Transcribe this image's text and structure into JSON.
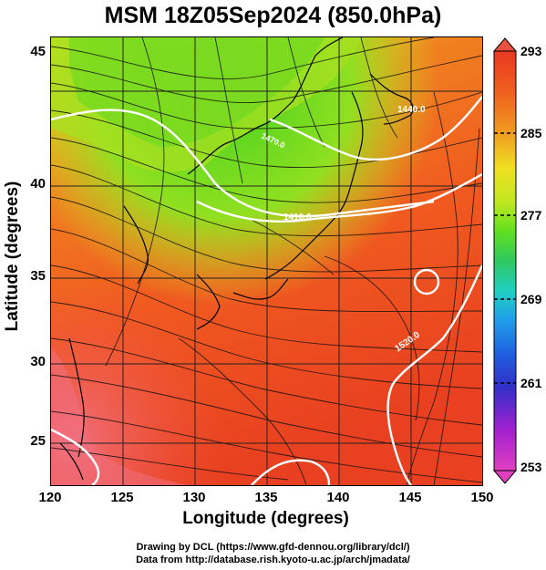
{
  "title": "MSM 18Z05Sep2024 (850.0hPa)",
  "axes": {
    "xlabel": "Longitude (degrees)",
    "ylabel": "Latitude  (degrees)",
    "xticks": [
      "120",
      "125",
      "130",
      "135",
      "140",
      "145",
      "150"
    ],
    "yticks": [
      "45",
      "40",
      "35",
      "30",
      "25"
    ],
    "xrange": [
      120,
      150
    ],
    "yrange": [
      22.4,
      47.6
    ]
  },
  "colorbar": {
    "ticks": [
      "293",
      "285",
      "277",
      "269",
      "261",
      "253"
    ],
    "min": 253,
    "max": 293,
    "colors": [
      "#e040c0",
      "#a020d0",
      "#3030c8",
      "#2060e0",
      "#20a0e8",
      "#20d0c0",
      "#30c860",
      "#60e020",
      "#c0e820",
      "#f0e020",
      "#f0a020",
      "#f06020",
      "#e83820"
    ]
  },
  "contour_labels": {
    "c1": "1440.0",
    "c2": "1410.0",
    "c3": "1470.0",
    "c4": "1520.0"
  },
  "credits": {
    "line1": "Drawing by DCL (https://www.gfd-dennou.org/library/dcl/)",
    "line2": "Data from http://database.rish.kyoto-u.ac.jp/arch/jmadata/"
  }
}
